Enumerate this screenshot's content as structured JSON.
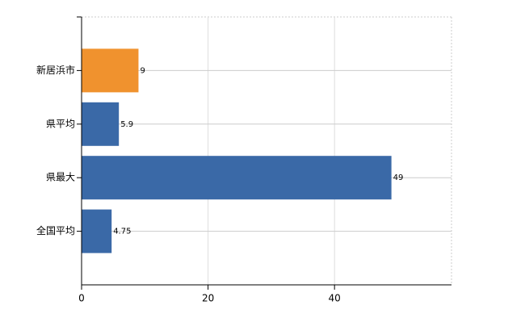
{
  "chart_data": {
    "type": "hbar",
    "categories": [
      "新居浜市",
      "県平均",
      "県最大",
      "全国平均"
    ],
    "values": [
      9,
      5.9,
      49,
      4.75
    ],
    "colors": [
      "#f0922e",
      "#3a69a7",
      "#3a69a7",
      "#3a69a7"
    ],
    "xlim": [
      0,
      58.5
    ],
    "xticks": [
      0,
      20,
      40
    ],
    "grid": true
  }
}
